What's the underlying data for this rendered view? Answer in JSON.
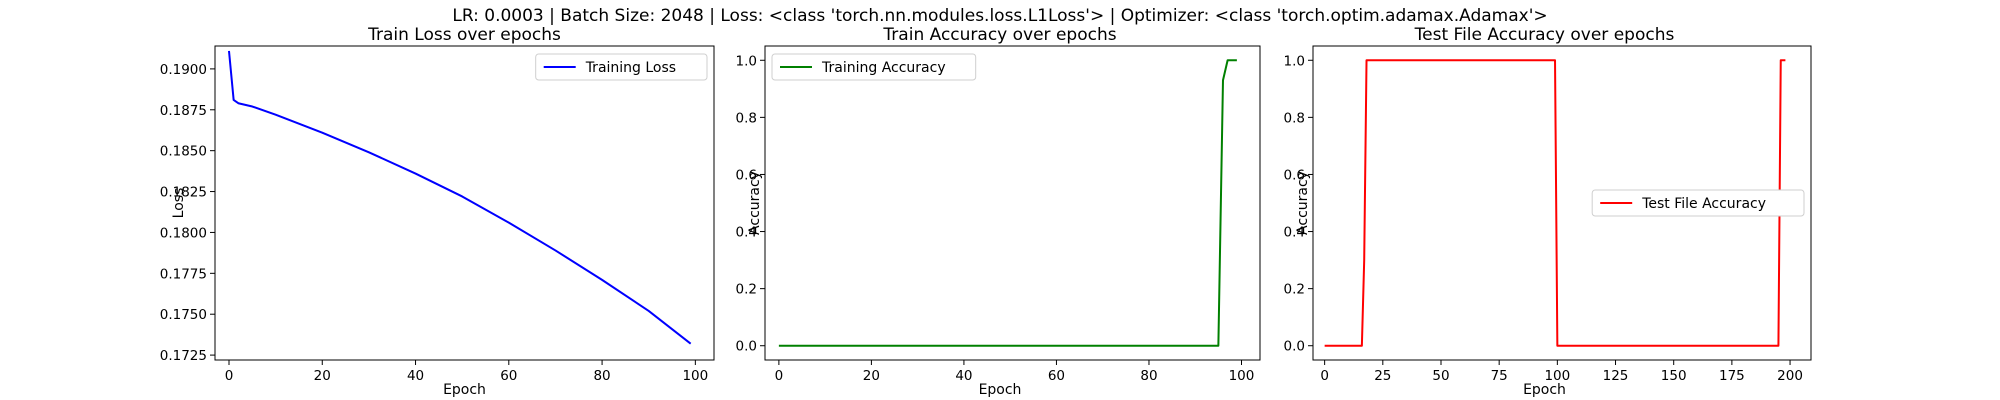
{
  "suptitle": "LR: 0.0003 | Batch Size: 2048 | Loss: <class 'torch.nn.modules.loss.L1Loss'> | Optimizer: <class 'torch.optim.adamax.Adamax'>",
  "chart_data": [
    {
      "type": "line",
      "title": "Train Loss over epochs",
      "xlabel": "Epoch",
      "ylabel": "Loss",
      "xlim": [
        -3,
        104
      ],
      "ylim": [
        0.1722,
        0.1914
      ],
      "xticks": [
        0,
        20,
        40,
        60,
        80,
        100
      ],
      "yticks": [
        0.1725,
        0.175,
        0.1775,
        0.18,
        0.1825,
        0.185,
        0.1875,
        0.19
      ],
      "ytick_decimals": 4,
      "legend": "top-right",
      "grid": false,
      "series": [
        {
          "name": "Training Loss",
          "color": "#0000ff",
          "x": [
            0,
            1,
            2,
            5,
            10,
            20,
            30,
            40,
            50,
            60,
            70,
            80,
            90,
            99
          ],
          "y": [
            0.1911,
            0.1881,
            0.1879,
            0.1877,
            0.1872,
            0.1861,
            0.1849,
            0.1836,
            0.1822,
            0.1806,
            0.1789,
            0.1771,
            0.1752,
            0.1732
          ]
        }
      ]
    },
    {
      "type": "line",
      "title": "Train Accuracy over epochs",
      "xlabel": "Epoch",
      "ylabel": "Accuracy",
      "xlim": [
        -3,
        104
      ],
      "ylim": [
        -0.05,
        1.05
      ],
      "xticks": [
        0,
        20,
        40,
        60,
        80,
        100
      ],
      "yticks": [
        0.0,
        0.2,
        0.4,
        0.6,
        0.8,
        1.0
      ],
      "ytick_decimals": 1,
      "legend": "top-left",
      "grid": false,
      "series": [
        {
          "name": "Training Accuracy",
          "color": "#008000",
          "x": [
            0,
            95,
            96,
            97,
            98,
            99
          ],
          "y": [
            0.0,
            0.0,
            0.93,
            1.0,
            1.0,
            1.0
          ]
        }
      ]
    },
    {
      "type": "line",
      "title": "Test File Accuracy over epochs",
      "xlabel": "Epoch",
      "ylabel": "Accuracy",
      "xlim": [
        -5,
        209
      ],
      "ylim": [
        -0.05,
        1.05
      ],
      "xticks": [
        0,
        25,
        50,
        75,
        100,
        125,
        150,
        175,
        200
      ],
      "yticks": [
        0.0,
        0.2,
        0.4,
        0.6,
        0.8,
        1.0
      ],
      "ytick_decimals": 1,
      "legend": "center-right",
      "grid": false,
      "series": [
        {
          "name": "Test File Accuracy",
          "color": "#ff0000",
          "x": [
            0,
            16,
            17,
            18,
            19,
            99,
            100,
            101,
            195,
            196,
            197,
            198
          ],
          "y": [
            0.0,
            0.0,
            0.3,
            1.0,
            1.0,
            1.0,
            0.0,
            0.0,
            0.0,
            1.0,
            1.0,
            1.0
          ]
        }
      ]
    }
  ]
}
